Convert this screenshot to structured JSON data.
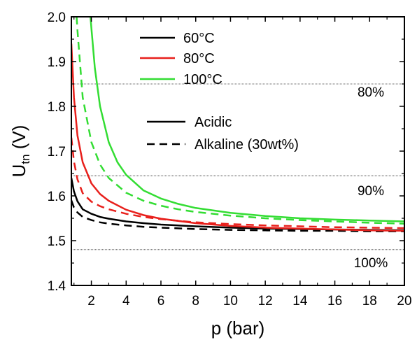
{
  "chart_data": {
    "type": "line",
    "xlabel": "p (bar)",
    "ylabel_main": "U",
    "ylabel_sub": "tn",
    "ylabel_unit": " (V)",
    "xlim": [
      0.85,
      20
    ],
    "ylim": [
      1.4,
      2.0
    ],
    "xticks": [
      2,
      4,
      6,
      8,
      10,
      12,
      14,
      16,
      18,
      20
    ],
    "yticks": [
      1.4,
      1.5,
      1.6,
      1.7,
      1.8,
      1.9,
      2.0
    ],
    "xtick_labels": [
      "2",
      "4",
      "6",
      "8",
      "10",
      "12",
      "14",
      "16",
      "18",
      "20"
    ],
    "ytick_labels": [
      "1.4",
      "1.5",
      "1.6",
      "1.7",
      "1.8",
      "1.9",
      "2.0"
    ],
    "legend_colors": [
      {
        "label": "60°C",
        "color": "#000000"
      },
      {
        "label": "80°C",
        "color": "#e8201c"
      },
      {
        "label": "100°C",
        "color": "#33dd33"
      }
    ],
    "legend_styles": [
      {
        "label": "Acidic",
        "dash": "solid"
      },
      {
        "label": "Alkaline (30wt%)",
        "dash": "dashed"
      }
    ],
    "reference_lines": [
      {
        "label": "80%",
        "y": 1.85
      },
      {
        "label": "90%",
        "y": 1.645
      },
      {
        "label": "100%",
        "y": 1.48
      }
    ],
    "series": [
      {
        "temp": "60°C",
        "style": "solid",
        "color": "#000000",
        "x": [
          0.85,
          1.0,
          1.2,
          1.5,
          2,
          2.5,
          3,
          4,
          5,
          6,
          8,
          10,
          12,
          14,
          16,
          18,
          20
        ],
        "y": [
          1.64,
          1.61,
          1.588,
          1.57,
          1.56,
          1.553,
          1.549,
          1.543,
          1.539,
          1.536,
          1.532,
          1.529,
          1.527,
          1.526,
          1.525,
          1.524,
          1.523
        ]
      },
      {
        "temp": "60°C",
        "style": "dashed",
        "color": "#000000",
        "x": [
          0.85,
          1.0,
          1.2,
          1.5,
          2,
          2.5,
          3,
          4,
          5,
          6,
          8,
          10,
          12,
          14,
          16,
          18,
          20
        ],
        "y": [
          1.59,
          1.574,
          1.563,
          1.553,
          1.546,
          1.541,
          1.538,
          1.534,
          1.531,
          1.529,
          1.526,
          1.524,
          1.523,
          1.522,
          1.522,
          1.521,
          1.521
        ]
      },
      {
        "temp": "80°C",
        "style": "solid",
        "color": "#e8201c",
        "x": [
          0.85,
          1.0,
          1.2,
          1.5,
          2,
          2.5,
          3,
          4,
          5,
          6,
          8,
          10,
          12,
          14,
          16,
          18,
          20
        ],
        "y": [
          1.94,
          1.82,
          1.735,
          1.675,
          1.628,
          1.604,
          1.589,
          1.569,
          1.557,
          1.549,
          1.539,
          1.533,
          1.529,
          1.527,
          1.525,
          1.523,
          1.522
        ]
      },
      {
        "temp": "80°C",
        "style": "dashed",
        "color": "#e8201c",
        "x": [
          0.85,
          1.0,
          1.2,
          1.5,
          2,
          2.5,
          3,
          4,
          5,
          6,
          8,
          10,
          12,
          14,
          16,
          18,
          20
        ],
        "y": [
          1.73,
          1.677,
          1.637,
          1.606,
          1.587,
          1.577,
          1.57,
          1.56,
          1.553,
          1.548,
          1.541,
          1.537,
          1.534,
          1.532,
          1.53,
          1.529,
          1.528
        ]
      },
      {
        "temp": "100°C",
        "style": "solid",
        "color": "#33dd33",
        "x": [
          1.95,
          2,
          2.2,
          2.5,
          3,
          3.5,
          4,
          5,
          6,
          7,
          8,
          10,
          12,
          14,
          16,
          18,
          20
        ],
        "y": [
          2.0,
          1.975,
          1.885,
          1.8,
          1.72,
          1.675,
          1.647,
          1.612,
          1.594,
          1.582,
          1.573,
          1.562,
          1.555,
          1.55,
          1.547,
          1.545,
          1.543
        ]
      },
      {
        "temp": "100°C",
        "style": "dashed",
        "color": "#33dd33",
        "x": [
          1.15,
          1.2,
          1.5,
          2,
          2.5,
          3,
          4,
          5,
          6,
          7,
          8,
          10,
          12,
          14,
          16,
          18,
          20
        ],
        "y": [
          2.0,
          1.97,
          1.82,
          1.72,
          1.67,
          1.64,
          1.607,
          1.589,
          1.578,
          1.57,
          1.564,
          1.556,
          1.55,
          1.546,
          1.543,
          1.54,
          1.538
        ]
      }
    ]
  }
}
